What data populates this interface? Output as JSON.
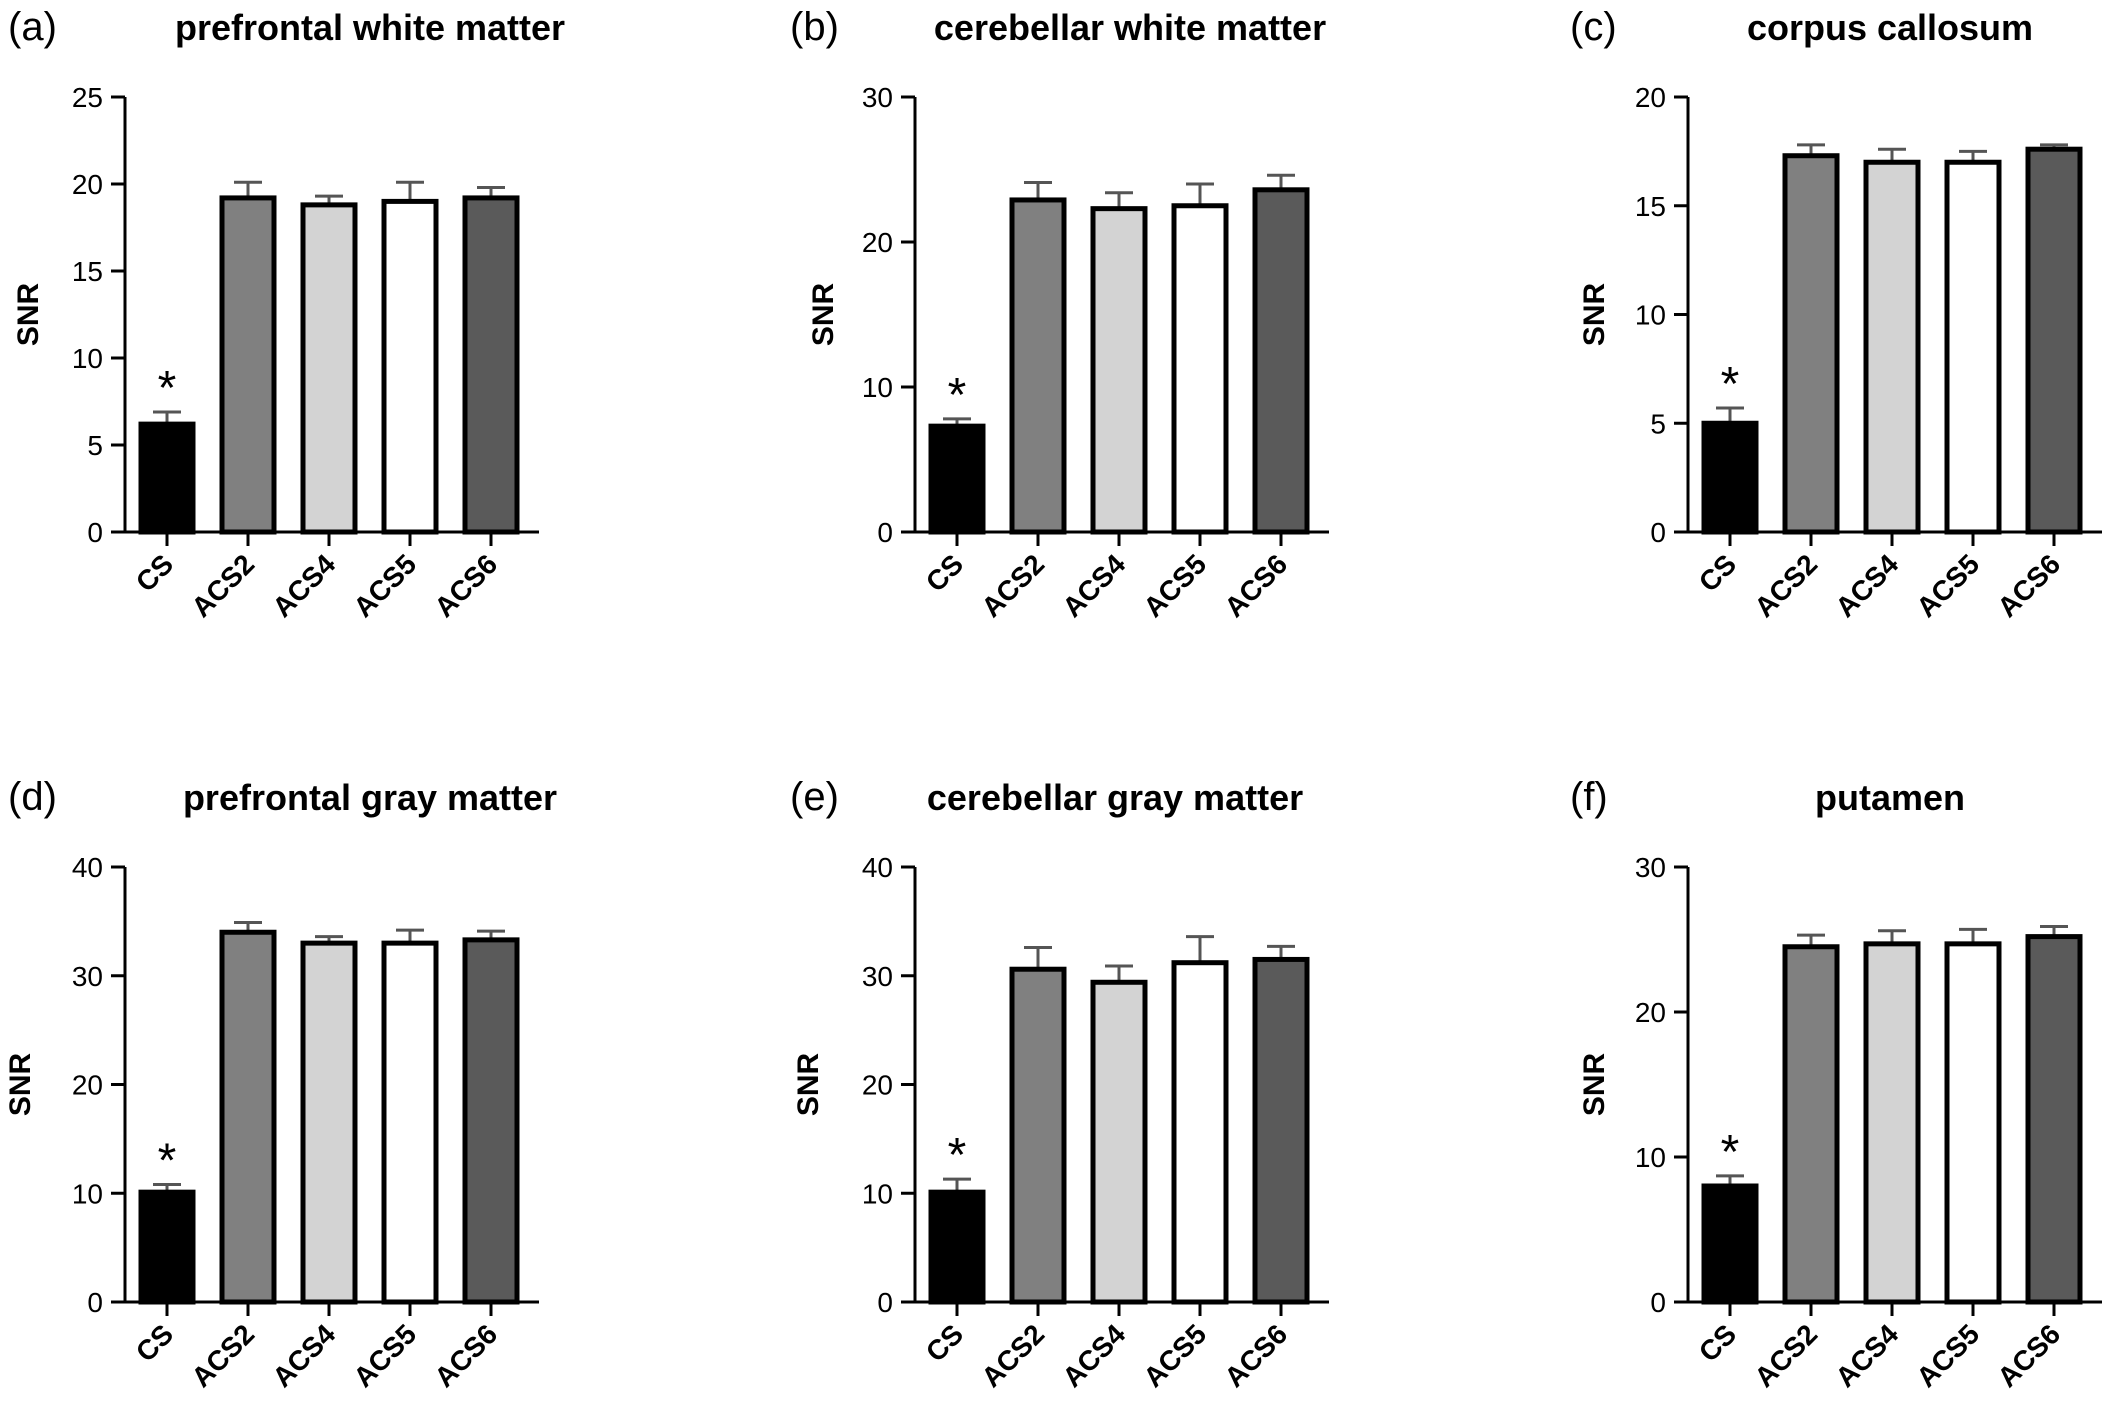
{
  "chart_data": [
    {
      "type": "bar",
      "panel_label": "(a)",
      "title": "prefrontal white matter",
      "ylabel": "SNR",
      "xlabel": "",
      "ylim": [
        0,
        25
      ],
      "yticks": [
        0,
        5,
        10,
        15,
        20,
        25
      ],
      "categories": [
        "CS",
        "ACS2",
        "ACS4",
        "ACS5",
        "ACS6"
      ],
      "values": [
        6.2,
        19.2,
        18.8,
        19.0,
        19.2
      ],
      "errors": [
        0.7,
        0.9,
        0.5,
        1.1,
        0.6
      ],
      "annotations": [
        "*",
        "",
        "",
        "",
        ""
      ],
      "bar_colors": [
        "#000000",
        "#808080",
        "#d3d3d3",
        "#ffffff",
        "#5a5a5a"
      ]
    },
    {
      "type": "bar",
      "panel_label": "(b)",
      "title": "cerebellar white matter",
      "ylabel": "SNR",
      "xlabel": "",
      "ylim": [
        0,
        30
      ],
      "yticks": [
        0,
        10,
        20,
        30
      ],
      "categories": [
        "CS",
        "ACS2",
        "ACS4",
        "ACS5",
        "ACS6"
      ],
      "values": [
        7.3,
        22.9,
        22.3,
        22.5,
        23.6
      ],
      "errors": [
        0.5,
        1.2,
        1.1,
        1.5,
        1.0
      ],
      "annotations": [
        "*",
        "",
        "",
        "",
        ""
      ],
      "bar_colors": [
        "#000000",
        "#808080",
        "#d3d3d3",
        "#ffffff",
        "#5a5a5a"
      ]
    },
    {
      "type": "bar",
      "panel_label": "(c)",
      "title": "corpus callosum",
      "ylabel": "SNR",
      "xlabel": "",
      "ylim": [
        0,
        20
      ],
      "yticks": [
        0,
        5,
        10,
        15,
        20
      ],
      "categories": [
        "CS",
        "ACS2",
        "ACS4",
        "ACS5",
        "ACS6"
      ],
      "values": [
        5.0,
        17.3,
        17.0,
        17.0,
        17.6
      ],
      "errors": [
        0.7,
        0.5,
        0.6,
        0.5,
        0.2
      ],
      "annotations": [
        "*",
        "",
        "",
        "",
        ""
      ],
      "bar_colors": [
        "#000000",
        "#808080",
        "#d3d3d3",
        "#ffffff",
        "#5a5a5a"
      ]
    },
    {
      "type": "bar",
      "panel_label": "(d)",
      "title": "prefrontal gray matter",
      "ylabel": "SNR",
      "xlabel": "",
      "ylim": [
        0,
        40
      ],
      "yticks": [
        0,
        10,
        20,
        30,
        40
      ],
      "categories": [
        "CS",
        "ACS2",
        "ACS4",
        "ACS5",
        "ACS6"
      ],
      "values": [
        10.1,
        34.0,
        33.0,
        33.0,
        33.3
      ],
      "errors": [
        0.7,
        0.9,
        0.6,
        1.2,
        0.8
      ],
      "annotations": [
        "*",
        "",
        "",
        "",
        ""
      ],
      "bar_colors": [
        "#000000",
        "#808080",
        "#d3d3d3",
        "#ffffff",
        "#5a5a5a"
      ]
    },
    {
      "type": "bar",
      "panel_label": "(e)",
      "title": "cerebellar gray matter",
      "ylabel": "SNR",
      "xlabel": "",
      "ylim": [
        0,
        40
      ],
      "yticks": [
        0,
        10,
        20,
        30,
        40
      ],
      "categories": [
        "CS",
        "ACS2",
        "ACS4",
        "ACS5",
        "ACS6"
      ],
      "values": [
        10.1,
        30.6,
        29.4,
        31.2,
        31.5
      ],
      "errors": [
        1.2,
        2.0,
        1.5,
        2.4,
        1.2
      ],
      "annotations": [
        "*",
        "",
        "",
        "",
        ""
      ],
      "bar_colors": [
        "#000000",
        "#808080",
        "#d3d3d3",
        "#ffffff",
        "#5a5a5a"
      ]
    },
    {
      "type": "bar",
      "panel_label": "(f)",
      "title": "putamen",
      "ylabel": "SNR",
      "xlabel": "",
      "ylim": [
        0,
        30
      ],
      "yticks": [
        0,
        10,
        20,
        30
      ],
      "categories": [
        "CS",
        "ACS2",
        "ACS4",
        "ACS5",
        "ACS6"
      ],
      "values": [
        8.0,
        24.5,
        24.7,
        24.7,
        25.2
      ],
      "errors": [
        0.7,
        0.8,
        0.9,
        1.0,
        0.7
      ],
      "annotations": [
        "*",
        "",
        "",
        "",
        ""
      ],
      "bar_colors": [
        "#000000",
        "#808080",
        "#d3d3d3",
        "#ffffff",
        "#5a5a5a"
      ]
    }
  ]
}
